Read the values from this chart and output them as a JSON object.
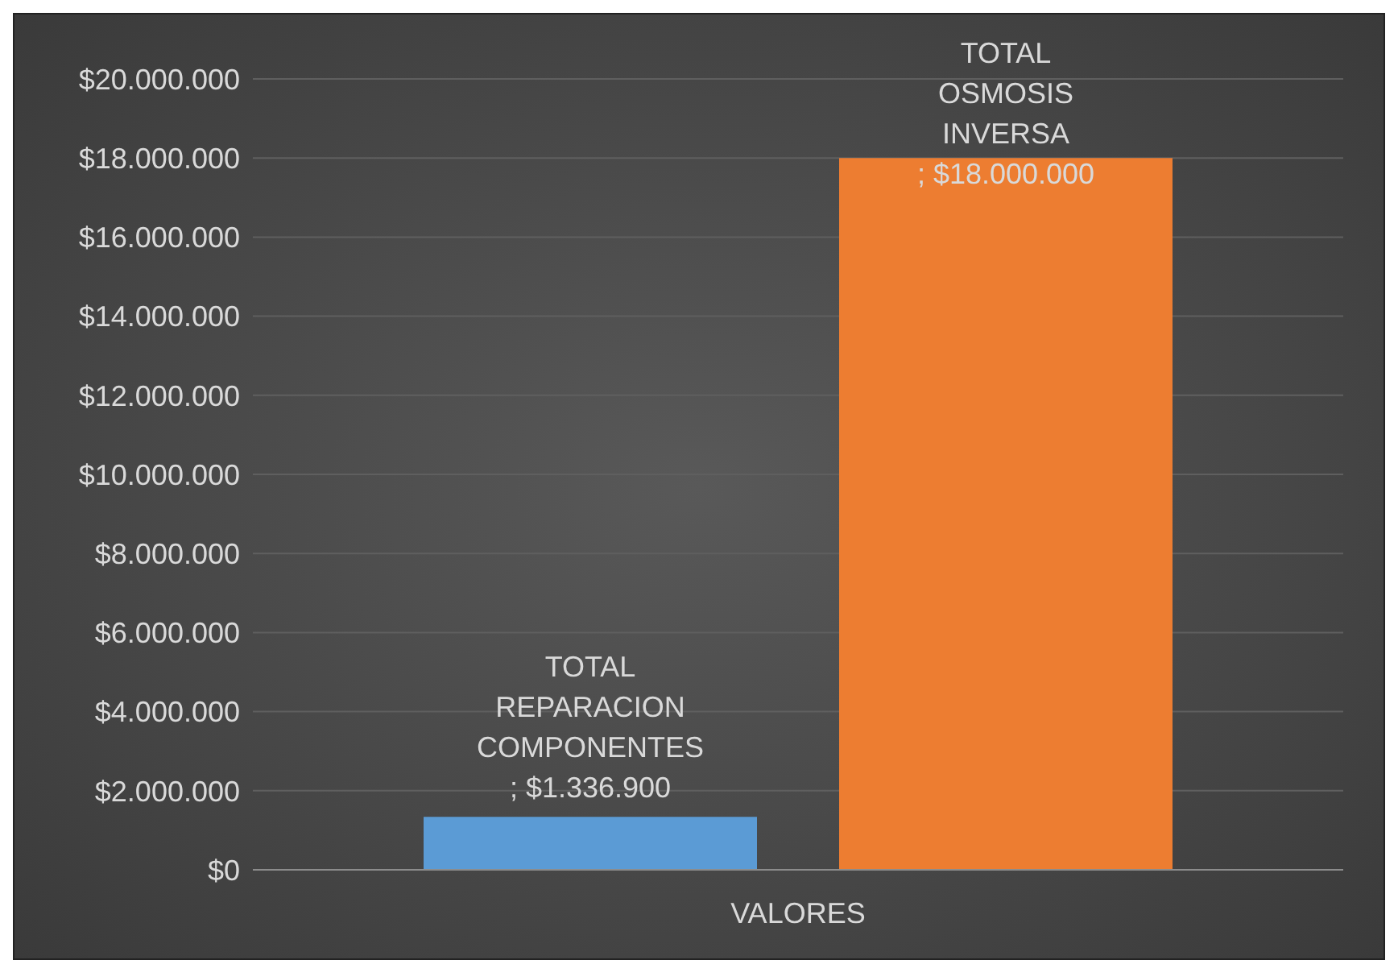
{
  "chart_data": {
    "type": "bar",
    "categories": [
      "VALORES"
    ],
    "series": [
      {
        "name": "TOTAL REPARACION COMPONENTES",
        "color": "#5b9bd5",
        "values": [
          1336900
        ],
        "value_labels": [
          "; $1.336.900"
        ]
      },
      {
        "name": "TOTAL OSMOSIS INVERSA",
        "color": "#ed7d31",
        "values": [
          18000000
        ],
        "value_labels": [
          "; $18.000.000"
        ]
      }
    ],
    "ylim": [
      0,
      20000000
    ],
    "yticks": [
      {
        "value": 0,
        "label": "$0"
      },
      {
        "value": 2000000,
        "label": "$2.000.000"
      },
      {
        "value": 4000000,
        "label": "$4.000.000"
      },
      {
        "value": 6000000,
        "label": "$6.000.000"
      },
      {
        "value": 8000000,
        "label": "$8.000.000"
      },
      {
        "value": 10000000,
        "label": "$10.000.000"
      },
      {
        "value": 12000000,
        "label": "$12.000.000"
      },
      {
        "value": 14000000,
        "label": "$14.000.000"
      },
      {
        "value": 16000000,
        "label": "$16.000.000"
      },
      {
        "value": 18000000,
        "label": "$18.000.000"
      },
      {
        "value": 20000000,
        "label": "$20.000.000"
      }
    ],
    "grid": "y",
    "legend": false
  }
}
